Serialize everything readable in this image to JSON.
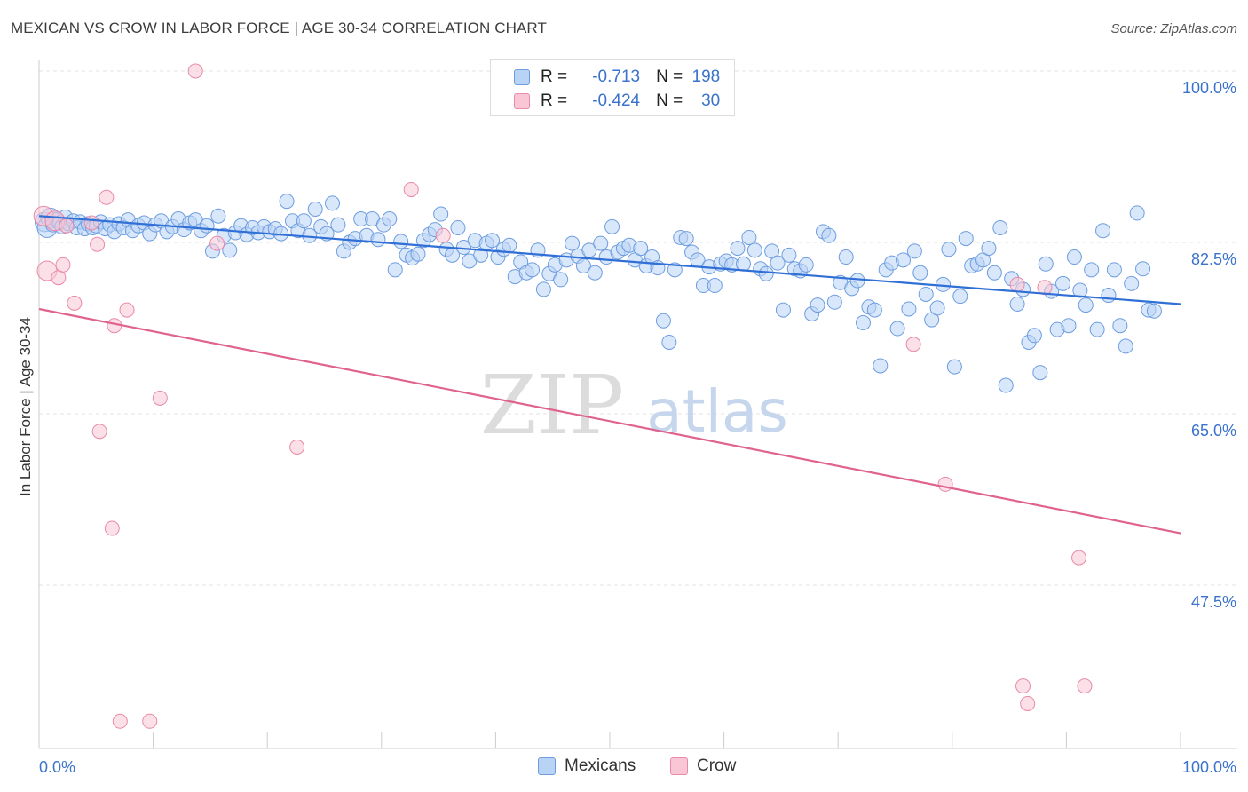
{
  "title": "MEXICAN VS CROW IN LABOR FORCE | AGE 30-34 CORRELATION CHART",
  "source": "Source: ZipAtlas.com",
  "watermark": {
    "zip": "ZIP",
    "atlas": "atlas"
  },
  "stats": [
    {
      "r_label": "R =",
      "r_value": "-0.713",
      "n_label": "N =",
      "n_value": "198"
    },
    {
      "r_label": "R =",
      "r_value": "-0.424",
      "n_label": "N =",
      "n_value": "30"
    }
  ],
  "legend": {
    "mexicans": "Mexicans",
    "crow": "Crow"
  },
  "chart_data": {
    "type": "scatter",
    "title": "MEXICAN VS CROW IN LABOR FORCE | AGE 30-34 CORRELATION CHART",
    "xlabel": "",
    "ylabel": "In Labor Force | Age 30-34",
    "xlim": [
      0,
      100
    ],
    "ylim": [
      32,
      102
    ],
    "x_tick_labels": [
      "0.0%",
      "100.0%"
    ],
    "y_ticks": [
      {
        "value": 100.0,
        "label": "100.0%"
      },
      {
        "value": 82.5,
        "label": "82.5%"
      },
      {
        "value": 65.0,
        "label": "65.0%"
      },
      {
        "value": 47.5,
        "label": "47.5%"
      }
    ],
    "grid": true,
    "legend_position": "bottom-center",
    "colors": {
      "mexicans": "#6d9de0",
      "mexicans_fill": "#b9d3f5",
      "mexicans_line": "#2f6fd6",
      "crow": "#e88aa8",
      "crow_fill": "#f9c6d5",
      "crow_line": "#e0628f"
    },
    "series": [
      {
        "name": "Mexicans",
        "trend": {
          "x": [
            0,
            100
          ],
          "y": [
            85.2,
            76.2
          ]
        },
        "points": [
          [
            0.5,
            84.6
          ],
          [
            0.7,
            84.0
          ],
          [
            1.0,
            85.0
          ],
          [
            1.2,
            84.3
          ],
          [
            1.5,
            84.8
          ],
          [
            1.8,
            84.5
          ],
          [
            2.0,
            84.1
          ],
          [
            2.3,
            85.1
          ],
          [
            2.6,
            84.4
          ],
          [
            3.0,
            84.7
          ],
          [
            3.3,
            84.0
          ],
          [
            3.6,
            84.6
          ],
          [
            4.0,
            83.9
          ],
          [
            4.3,
            84.4
          ],
          [
            4.7,
            84.0
          ],
          [
            5.0,
            84.2
          ],
          [
            5.4,
            84.6
          ],
          [
            5.8,
            83.9
          ],
          [
            6.2,
            84.3
          ],
          [
            6.6,
            83.6
          ],
          [
            7.0,
            84.4
          ],
          [
            7.4,
            84.0
          ],
          [
            7.8,
            84.8
          ],
          [
            8.2,
            83.7
          ],
          [
            8.7,
            84.2
          ],
          [
            9.2,
            84.5
          ],
          [
            9.7,
            83.4
          ],
          [
            10.2,
            84.3
          ],
          [
            10.7,
            84.7
          ],
          [
            11.2,
            83.6
          ],
          [
            11.7,
            84.1
          ],
          [
            12.2,
            84.9
          ],
          [
            12.7,
            83.8
          ],
          [
            13.2,
            84.5
          ],
          [
            13.7,
            84.8
          ],
          [
            14.2,
            83.7
          ],
          [
            14.7,
            84.2
          ],
          [
            15.2,
            81.6
          ],
          [
            15.7,
            85.2
          ],
          [
            16.2,
            83.2
          ],
          [
            16.7,
            81.7
          ],
          [
            17.2,
            83.5
          ],
          [
            17.7,
            84.2
          ],
          [
            18.2,
            83.3
          ],
          [
            18.7,
            84.0
          ],
          [
            19.2,
            83.5
          ],
          [
            19.7,
            84.1
          ],
          [
            20.2,
            83.6
          ],
          [
            20.7,
            83.9
          ],
          [
            21.2,
            83.4
          ],
          [
            21.7,
            86.7
          ],
          [
            22.2,
            84.7
          ],
          [
            22.7,
            83.7
          ],
          [
            23.2,
            84.7
          ],
          [
            23.7,
            83.2
          ],
          [
            24.2,
            85.9
          ],
          [
            24.7,
            84.1
          ],
          [
            25.2,
            83.4
          ],
          [
            25.7,
            86.5
          ],
          [
            26.2,
            84.3
          ],
          [
            26.7,
            81.6
          ],
          [
            27.2,
            82.5
          ],
          [
            27.7,
            82.9
          ],
          [
            28.2,
            84.9
          ],
          [
            28.7,
            83.2
          ],
          [
            29.2,
            84.9
          ],
          [
            29.7,
            82.8
          ],
          [
            30.2,
            84.3
          ],
          [
            30.7,
            84.9
          ],
          [
            31.2,
            79.7
          ],
          [
            31.7,
            82.6
          ],
          [
            32.2,
            81.2
          ],
          [
            32.7,
            80.9
          ],
          [
            33.2,
            81.3
          ],
          [
            33.7,
            82.7
          ],
          [
            34.2,
            83.3
          ],
          [
            34.7,
            83.8
          ],
          [
            35.2,
            85.4
          ],
          [
            35.7,
            81.8
          ],
          [
            36.2,
            81.2
          ],
          [
            36.7,
            84.0
          ],
          [
            37.2,
            82.0
          ],
          [
            37.7,
            80.6
          ],
          [
            38.2,
            82.7
          ],
          [
            38.7,
            81.2
          ],
          [
            39.2,
            82.4
          ],
          [
            39.7,
            82.7
          ],
          [
            40.2,
            81.0
          ],
          [
            40.7,
            81.8
          ],
          [
            41.2,
            82.2
          ],
          [
            41.7,
            79.0
          ],
          [
            42.2,
            80.5
          ],
          [
            42.7,
            79.4
          ],
          [
            43.2,
            79.7
          ],
          [
            43.7,
            81.7
          ],
          [
            44.2,
            77.7
          ],
          [
            44.7,
            79.3
          ],
          [
            45.2,
            80.2
          ],
          [
            45.7,
            78.7
          ],
          [
            46.2,
            80.7
          ],
          [
            46.7,
            82.4
          ],
          [
            47.2,
            81.1
          ],
          [
            47.7,
            80.1
          ],
          [
            48.2,
            81.7
          ],
          [
            48.7,
            79.4
          ],
          [
            49.2,
            82.4
          ],
          [
            49.7,
            81.0
          ],
          [
            50.2,
            84.1
          ],
          [
            50.7,
            81.5
          ],
          [
            51.2,
            81.9
          ],
          [
            51.7,
            82.2
          ],
          [
            52.2,
            80.7
          ],
          [
            52.7,
            81.9
          ],
          [
            53.2,
            80.1
          ],
          [
            53.7,
            81.0
          ],
          [
            54.2,
            79.9
          ],
          [
            54.7,
            74.5
          ],
          [
            55.2,
            72.3
          ],
          [
            55.7,
            79.7
          ],
          [
            56.2,
            83.0
          ],
          [
            56.7,
            82.9
          ],
          [
            57.2,
            81.5
          ],
          [
            57.7,
            80.7
          ],
          [
            58.2,
            78.1
          ],
          [
            58.7,
            80.0
          ],
          [
            59.2,
            78.1
          ],
          [
            59.7,
            80.3
          ],
          [
            60.2,
            80.6
          ],
          [
            60.7,
            80.2
          ],
          [
            61.2,
            81.9
          ],
          [
            61.7,
            80.3
          ],
          [
            62.2,
            83.0
          ],
          [
            62.7,
            81.7
          ],
          [
            63.2,
            79.8
          ],
          [
            63.7,
            79.3
          ],
          [
            64.2,
            81.6
          ],
          [
            64.7,
            80.4
          ],
          [
            65.2,
            75.6
          ],
          [
            65.7,
            81.2
          ],
          [
            66.2,
            79.8
          ],
          [
            66.7,
            79.6
          ],
          [
            67.2,
            80.2
          ],
          [
            67.7,
            75.2
          ],
          [
            68.2,
            76.1
          ],
          [
            68.7,
            83.6
          ],
          [
            69.2,
            83.2
          ],
          [
            69.7,
            76.4
          ],
          [
            70.2,
            78.4
          ],
          [
            70.7,
            81.0
          ],
          [
            71.2,
            77.8
          ],
          [
            71.7,
            78.6
          ],
          [
            72.2,
            74.3
          ],
          [
            72.7,
            75.9
          ],
          [
            73.2,
            75.6
          ],
          [
            73.7,
            69.9
          ],
          [
            74.2,
            79.7
          ],
          [
            74.7,
            80.4
          ],
          [
            75.2,
            73.7
          ],
          [
            75.7,
            80.7
          ],
          [
            76.2,
            75.7
          ],
          [
            76.7,
            81.6
          ],
          [
            77.2,
            79.4
          ],
          [
            77.7,
            77.2
          ],
          [
            78.2,
            74.6
          ],
          [
            78.7,
            75.8
          ],
          [
            79.2,
            78.2
          ],
          [
            79.7,
            81.8
          ],
          [
            80.2,
            69.8
          ],
          [
            80.7,
            77.0
          ],
          [
            81.2,
            82.9
          ],
          [
            81.7,
            80.1
          ],
          [
            82.2,
            80.3
          ],
          [
            82.7,
            80.7
          ],
          [
            83.2,
            81.9
          ],
          [
            83.7,
            79.4
          ],
          [
            84.2,
            84.0
          ],
          [
            84.7,
            67.9
          ],
          [
            85.2,
            78.8
          ],
          [
            85.7,
            76.2
          ],
          [
            86.2,
            77.7
          ],
          [
            86.7,
            72.3
          ],
          [
            87.2,
            73.0
          ],
          [
            87.7,
            69.2
          ],
          [
            88.2,
            80.3
          ],
          [
            88.7,
            77.5
          ],
          [
            89.2,
            73.6
          ],
          [
            89.7,
            78.3
          ],
          [
            90.2,
            74.0
          ],
          [
            90.7,
            81.0
          ],
          [
            91.2,
            77.6
          ],
          [
            91.7,
            76.1
          ],
          [
            92.2,
            79.7
          ],
          [
            92.7,
            73.6
          ],
          [
            93.2,
            83.7
          ],
          [
            93.7,
            77.1
          ],
          [
            94.2,
            79.7
          ],
          [
            94.7,
            74.0
          ],
          [
            95.2,
            71.9
          ],
          [
            95.7,
            78.3
          ],
          [
            96.2,
            85.5
          ],
          [
            96.7,
            79.8
          ],
          [
            97.2,
            75.6
          ],
          [
            97.7,
            75.5
          ]
        ]
      },
      {
        "name": "Crow",
        "trend": {
          "x": [
            0,
            100
          ],
          "y": [
            75.7,
            52.8
          ]
        },
        "points": [
          [
            0.4,
            85.2
          ],
          [
            0.7,
            79.6
          ],
          [
            1.4,
            84.7
          ],
          [
            1.7,
            78.9
          ],
          [
            2.1,
            80.2
          ],
          [
            2.4,
            84.2
          ],
          [
            3.1,
            76.3
          ],
          [
            4.6,
            84.5
          ],
          [
            5.1,
            82.3
          ],
          [
            5.3,
            63.2
          ],
          [
            5.9,
            87.1
          ],
          [
            6.4,
            53.3
          ],
          [
            6.6,
            74.0
          ],
          [
            7.1,
            33.6
          ],
          [
            7.7,
            75.6
          ],
          [
            9.7,
            33.6
          ],
          [
            10.6,
            66.6
          ],
          [
            13.7,
            100.0
          ],
          [
            15.6,
            82.4
          ],
          [
            22.6,
            61.6
          ],
          [
            32.6,
            87.9
          ],
          [
            35.4,
            83.2
          ],
          [
            76.6,
            72.1
          ],
          [
            79.4,
            57.8
          ],
          [
            85.7,
            78.2
          ],
          [
            86.2,
            37.2
          ],
          [
            86.6,
            35.4
          ],
          [
            88.1,
            77.9
          ],
          [
            91.1,
            50.3
          ],
          [
            91.6,
            37.2
          ]
        ]
      }
    ]
  }
}
